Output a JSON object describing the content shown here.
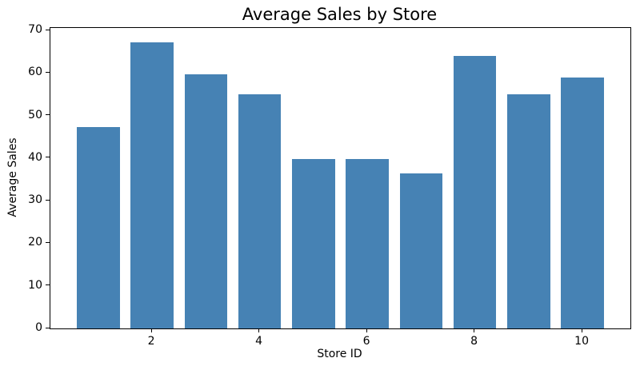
{
  "figure": {
    "background": "#ffffff",
    "spine_color": "#000000",
    "text_color": "#000000"
  },
  "chart_data": {
    "type": "bar",
    "title": "Average Sales by Store",
    "xlabel": "Store ID",
    "ylabel": "Average Sales",
    "x": [
      1,
      2,
      3,
      4,
      5,
      6,
      7,
      8,
      9,
      10
    ],
    "values": [
      47.3,
      67.1,
      59.6,
      54.9,
      39.8,
      39.8,
      36.4,
      64.0,
      55.0,
      58.9
    ],
    "xticks": [
      2,
      4,
      6,
      8,
      10
    ],
    "yticks": [
      0,
      10,
      20,
      30,
      40,
      50,
      60,
      70
    ],
    "xlim": [
      0.11,
      10.89
    ],
    "ylim": [
      0,
      70.56
    ],
    "bar_width": 0.8,
    "bar_color": "#4682b4",
    "grid": false,
    "legend": "none"
  }
}
